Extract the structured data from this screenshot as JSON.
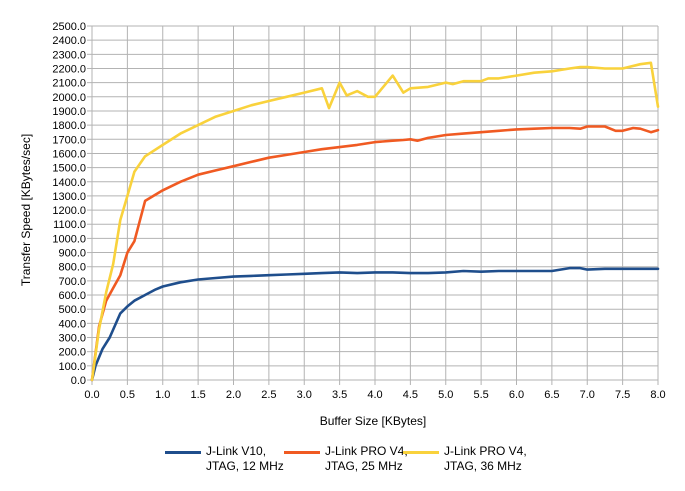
{
  "chart_data": {
    "type": "line",
    "title": "",
    "xlabel": "Buffer Size [KBytes]",
    "ylabel": "Transfer Speed [KBytes/sec]",
    "xlim": [
      0,
      8
    ],
    "ylim": [
      0,
      2500
    ],
    "x_ticks": [
      "0.0",
      "0.5",
      "1.0",
      "1.5",
      "2.0",
      "2.5",
      "3.0",
      "3.5",
      "4.0",
      "4.5",
      "5.0",
      "5.5",
      "6.0",
      "6.5",
      "7.0",
      "7.5",
      "8.0"
    ],
    "y_ticks": [
      "0.0",
      "100.0",
      "200.0",
      "300.0",
      "400.0",
      "500.0",
      "600.0",
      "700.0",
      "800.0",
      "900.0",
      "1000.0",
      "1100.0",
      "1200.0",
      "1300.0",
      "1400.0",
      "1500.0",
      "1600.0",
      "1700.0",
      "1800.0",
      "1900.0",
      "2000.0",
      "2100.0",
      "2200.0",
      "2300.0",
      "2400.0",
      "2500.0"
    ],
    "grid": true,
    "legend_position": "bottom",
    "series": [
      {
        "name": "J-Link V10,\nJTAG, 12 MHz",
        "color": "#1f4e8c",
        "points": [
          [
            0.0,
            0
          ],
          [
            0.05,
            100
          ],
          [
            0.15,
            220
          ],
          [
            0.25,
            300
          ],
          [
            0.4,
            470
          ],
          [
            0.5,
            520
          ],
          [
            0.6,
            560
          ],
          [
            0.75,
            600
          ],
          [
            0.9,
            640
          ],
          [
            1.0,
            660
          ],
          [
            1.25,
            690
          ],
          [
            1.5,
            710
          ],
          [
            1.75,
            720
          ],
          [
            2.0,
            730
          ],
          [
            2.25,
            735
          ],
          [
            2.5,
            740
          ],
          [
            2.75,
            745
          ],
          [
            3.0,
            750
          ],
          [
            3.25,
            755
          ],
          [
            3.5,
            760
          ],
          [
            3.75,
            755
          ],
          [
            4.0,
            760
          ],
          [
            4.25,
            760
          ],
          [
            4.5,
            755
          ],
          [
            4.75,
            755
          ],
          [
            5.0,
            760
          ],
          [
            5.25,
            770
          ],
          [
            5.5,
            765
          ],
          [
            5.75,
            770
          ],
          [
            6.0,
            770
          ],
          [
            6.25,
            770
          ],
          [
            6.5,
            770
          ],
          [
            6.75,
            790
          ],
          [
            6.9,
            790
          ],
          [
            7.0,
            780
          ],
          [
            7.25,
            785
          ],
          [
            7.5,
            785
          ],
          [
            7.75,
            785
          ],
          [
            8.0,
            785
          ]
        ]
      },
      {
        "name": "J-Link PRO V4,\nJTAG, 25 MHz",
        "color": "#f05a22",
        "points": [
          [
            0.0,
            0
          ],
          [
            0.1,
            380
          ],
          [
            0.2,
            560
          ],
          [
            0.3,
            650
          ],
          [
            0.4,
            740
          ],
          [
            0.5,
            900
          ],
          [
            0.6,
            980
          ],
          [
            0.75,
            1265
          ],
          [
            1.0,
            1340
          ],
          [
            1.25,
            1400
          ],
          [
            1.5,
            1450
          ],
          [
            1.75,
            1480
          ],
          [
            2.0,
            1510
          ],
          [
            2.25,
            1540
          ],
          [
            2.5,
            1570
          ],
          [
            2.75,
            1590
          ],
          [
            3.0,
            1610
          ],
          [
            3.25,
            1630
          ],
          [
            3.5,
            1645
          ],
          [
            3.75,
            1660
          ],
          [
            4.0,
            1680
          ],
          [
            4.25,
            1690
          ],
          [
            4.4,
            1695
          ],
          [
            4.5,
            1700
          ],
          [
            4.6,
            1690
          ],
          [
            4.75,
            1710
          ],
          [
            5.0,
            1730
          ],
          [
            5.25,
            1740
          ],
          [
            5.5,
            1750
          ],
          [
            5.75,
            1760
          ],
          [
            6.0,
            1770
          ],
          [
            6.25,
            1775
          ],
          [
            6.5,
            1780
          ],
          [
            6.75,
            1780
          ],
          [
            6.9,
            1775
          ],
          [
            7.0,
            1790
          ],
          [
            7.25,
            1790
          ],
          [
            7.4,
            1760
          ],
          [
            7.5,
            1760
          ],
          [
            7.65,
            1780
          ],
          [
            7.75,
            1775
          ],
          [
            7.9,
            1750
          ],
          [
            8.0,
            1765
          ]
        ]
      },
      {
        "name": "J-Link PRO V4,\nJTAG, 36 MHz",
        "color": "#f9d23c",
        "points": [
          [
            0.0,
            0
          ],
          [
            0.1,
            360
          ],
          [
            0.2,
            620
          ],
          [
            0.3,
            820
          ],
          [
            0.4,
            1130
          ],
          [
            0.5,
            1300
          ],
          [
            0.6,
            1470
          ],
          [
            0.75,
            1580
          ],
          [
            1.0,
            1660
          ],
          [
            1.25,
            1740
          ],
          [
            1.5,
            1800
          ],
          [
            1.75,
            1860
          ],
          [
            2.0,
            1900
          ],
          [
            2.25,
            1940
          ],
          [
            2.5,
            1970
          ],
          [
            2.75,
            2000
          ],
          [
            3.0,
            2030
          ],
          [
            3.25,
            2060
          ],
          [
            3.35,
            1920
          ],
          [
            3.5,
            2100
          ],
          [
            3.6,
            2010
          ],
          [
            3.75,
            2040
          ],
          [
            3.9,
            2000
          ],
          [
            4.0,
            2000
          ],
          [
            4.25,
            2150
          ],
          [
            4.4,
            2030
          ],
          [
            4.5,
            2060
          ],
          [
            4.75,
            2070
          ],
          [
            5.0,
            2100
          ],
          [
            5.1,
            2090
          ],
          [
            5.25,
            2110
          ],
          [
            5.5,
            2110
          ],
          [
            5.6,
            2130
          ],
          [
            5.75,
            2130
          ],
          [
            6.0,
            2150
          ],
          [
            6.25,
            2170
          ],
          [
            6.5,
            2180
          ],
          [
            6.75,
            2200
          ],
          [
            6.9,
            2210
          ],
          [
            7.0,
            2210
          ],
          [
            7.25,
            2200
          ],
          [
            7.5,
            2200
          ],
          [
            7.75,
            2230
          ],
          [
            7.9,
            2240
          ],
          [
            8.0,
            1930
          ]
        ]
      }
    ]
  }
}
